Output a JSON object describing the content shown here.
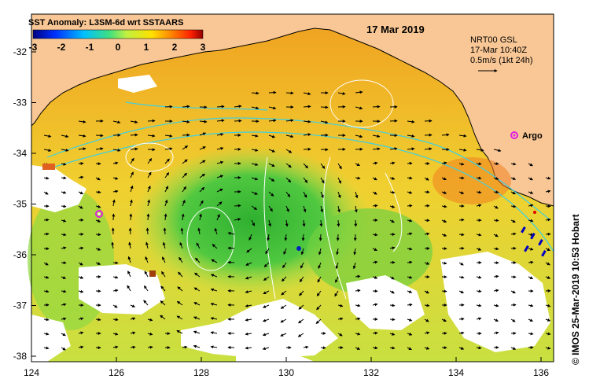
{
  "map": {
    "title": "SST Anomaly: L3SM-6d wrt SSTAARS",
    "date": "17 Mar 2019",
    "colorbar": {
      "ticks": [
        "-3",
        "-2",
        "-1",
        "0",
        "1",
        "2",
        "3"
      ],
      "colors": [
        "#000080",
        "#0040ff",
        "#00c0ff",
        "#40e0a0",
        "#c0f040",
        "#ffe000",
        "#ff8000",
        "#ff2000",
        "#a00000"
      ]
    },
    "current_legend": {
      "line1": "NRT00 GSL",
      "line2": "17-Mar 10:40Z",
      "line3": "0.5m/s (1kt 24h)"
    },
    "argo_label": "Argo",
    "credit": "© IMOS 25-Mar-2019 10:53 Hobart",
    "lat_ticks": [
      "-32",
      "-33",
      "-34",
      "-35",
      "-36",
      "-37",
      "-38"
    ],
    "lon_ticks": [
      "124",
      "126",
      "128",
      "130",
      "132",
      "134",
      "136"
    ],
    "colors": {
      "land": "#f9c795",
      "ocean_warm": "#f0c020",
      "ocean_green": "#40c040",
      "cloud": "#ffffff",
      "argo": "#e020e0",
      "current_contour": "#40d0e0"
    }
  }
}
